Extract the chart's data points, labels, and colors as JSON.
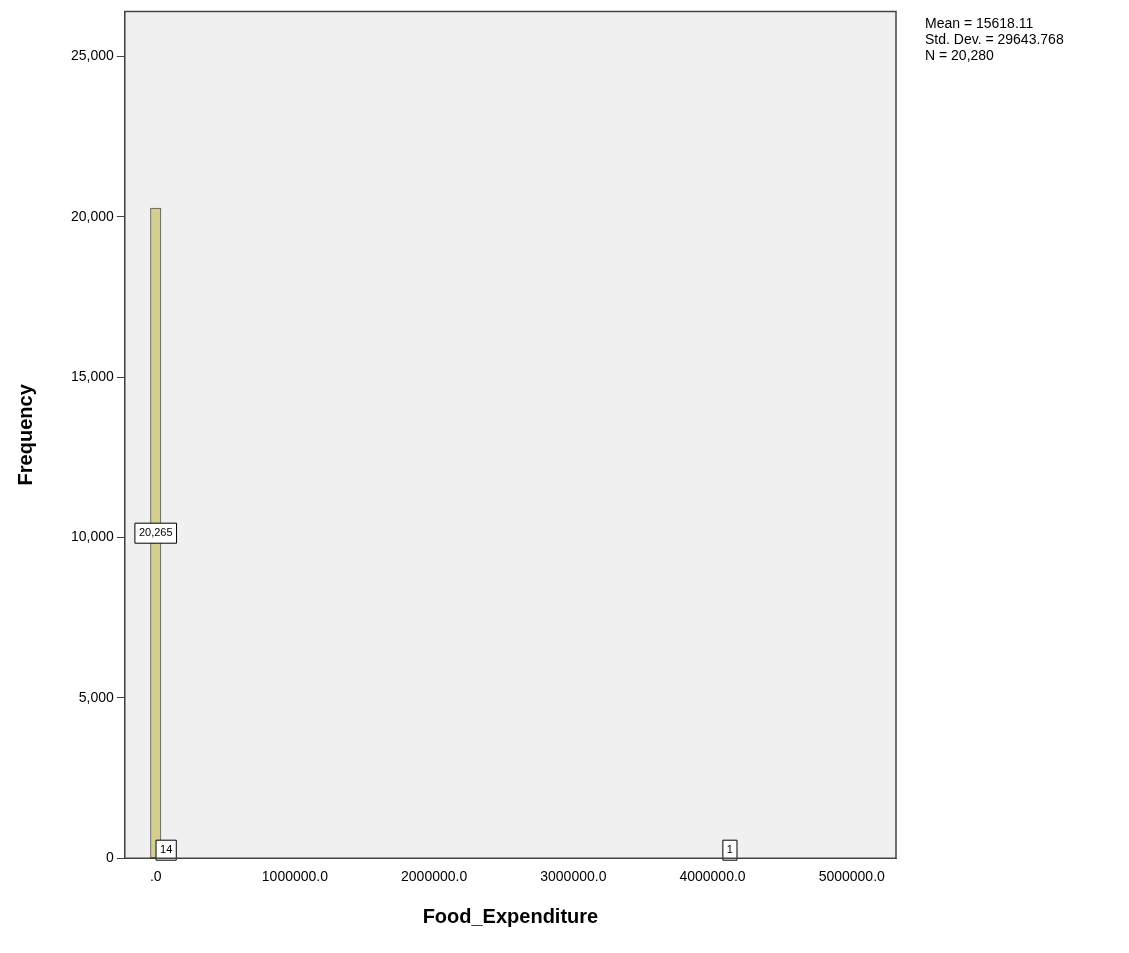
{
  "chart_data": {
    "type": "histogram",
    "xlabel": "Food_Expenditure",
    "ylabel": "Frequency",
    "bins": [
      -37500,
      37500,
      112500,
      187500,
      262500,
      337500,
      412500,
      487500,
      562500,
      637500,
      712500,
      787500,
      862500,
      937500,
      1012500,
      1087500,
      1162500,
      1237500,
      1312500,
      1387500,
      1462500,
      1537500,
      1612500,
      1687500,
      1762500,
      1837500,
      1912500,
      1987500,
      2062500,
      2137500,
      2212500,
      2287500,
      2362500,
      2437500,
      2512500,
      2587500,
      2662500,
      2737500,
      2812500,
      2887500,
      2962500,
      3037500,
      3112500,
      3187500,
      3262500,
      3337500,
      3412500,
      3487500,
      3562500,
      3637500,
      3712500,
      3787500,
      3862500,
      3937500,
      4012500,
      4087500,
      4162500
    ],
    "values": [
      20265,
      14,
      0,
      0,
      0,
      0,
      0,
      0,
      0,
      0,
      0,
      0,
      0,
      0,
      0,
      0,
      0,
      0,
      0,
      0,
      0,
      0,
      0,
      0,
      0,
      0,
      0,
      0,
      0,
      0,
      0,
      0,
      0,
      0,
      0,
      0,
      0,
      0,
      0,
      0,
      0,
      0,
      0,
      0,
      0,
      0,
      0,
      0,
      0,
      0,
      0,
      0,
      0,
      0,
      0,
      1
    ],
    "value_labels": [
      "20,265",
      "14",
      null,
      null,
      null,
      null,
      null,
      null,
      null,
      null,
      null,
      null,
      null,
      null,
      null,
      null,
      null,
      null,
      null,
      null,
      null,
      null,
      null,
      null,
      null,
      null,
      null,
      null,
      null,
      null,
      null,
      null,
      null,
      null,
      null,
      null,
      null,
      null,
      null,
      null,
      null,
      null,
      null,
      null,
      null,
      null,
      null,
      null,
      null,
      null,
      null,
      null,
      null,
      null,
      null,
      "1"
    ],
    "color": "#d4cf8e",
    "xlim": [
      -222000,
      5318000
    ],
    "xticks": [
      {
        "value": 0,
        "label": ".0"
      },
      {
        "value": 1000000,
        "label": "1000000.0"
      },
      {
        "value": 2000000,
        "label": "2000000.0"
      },
      {
        "value": 3000000,
        "label": "3000000.0"
      },
      {
        "value": 4000000,
        "label": "4000000.0"
      },
      {
        "value": 5000000,
        "label": "5000000.0"
      }
    ],
    "ylim": [
      0,
      26400
    ],
    "yticks": [
      0,
      {
        "value": 5000,
        "label": "5,000"
      },
      {
        "value": 10000,
        "label": "10,000"
      },
      {
        "value": 15000,
        "label": "15,000"
      },
      {
        "value": 20000,
        "label": "20,000"
      },
      {
        "value": 25000,
        "label": "25,000"
      }
    ],
    "grid": false,
    "legend": false,
    "annotations": [
      "Mean = 15618.11",
      "Std. Dev. = 29643.768",
      "N = 20,280"
    ]
  }
}
